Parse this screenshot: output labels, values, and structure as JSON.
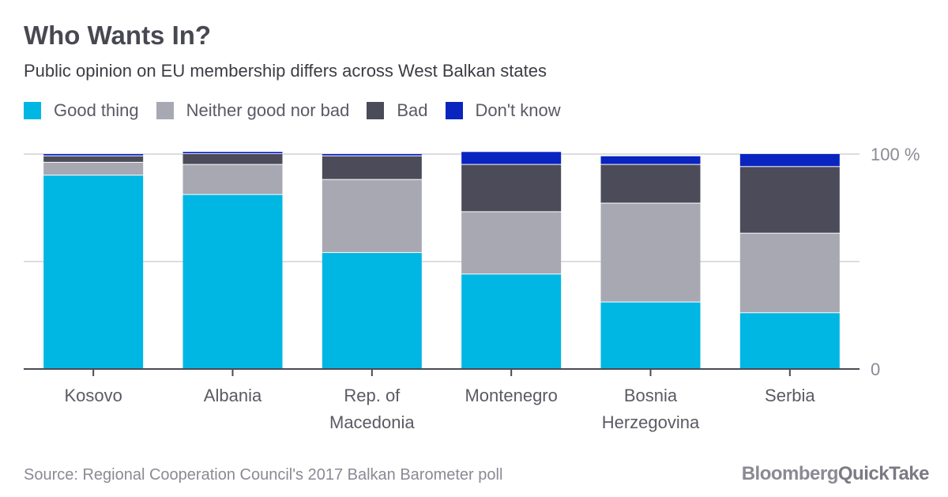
{
  "header": {
    "title": "Who Wants In?",
    "subtitle": "Public opinion on EU membership differs across West Balkan states"
  },
  "legend": [
    {
      "label": "Good thing",
      "color": "#00b6e3"
    },
    {
      "label": "Neither good nor bad",
      "color": "#a8a8b2"
    },
    {
      "label": "Bad",
      "color": "#4c4b5a"
    },
    {
      "label": "Don't know",
      "color": "#0a24c0"
    }
  ],
  "footer": {
    "source": "Source: Regional Cooperation Council's 2017 Balkan Barometer poll",
    "brand_part1": "Bloomberg",
    "brand_part2": "QuickTake"
  },
  "chart_data": {
    "type": "bar",
    "stacked": true,
    "categories": [
      [
        "Kosovo"
      ],
      [
        "Albania"
      ],
      [
        "Rep. of",
        "Macedonia"
      ],
      [
        "Montenegro"
      ],
      [
        "Bosnia",
        "Herzegovina"
      ],
      [
        "Serbia"
      ]
    ],
    "series": [
      {
        "name": "Good thing",
        "color": "#00b6e3",
        "values": [
          90,
          81,
          54,
          44,
          31,
          26
        ]
      },
      {
        "name": "Neither good nor bad",
        "color": "#a8a8b2",
        "values": [
          6,
          14,
          34,
          29,
          46,
          37
        ]
      },
      {
        "name": "Bad",
        "color": "#4c4b5a",
        "values": [
          3,
          5,
          11,
          22,
          18,
          31
        ]
      },
      {
        "name": "Don't know",
        "color": "#0a24c0",
        "values": [
          1,
          1,
          1,
          6,
          4,
          6
        ]
      }
    ],
    "y_ticks": [
      {
        "value": 100,
        "label": "100 %"
      },
      {
        "value": 50,
        "label": ""
      },
      {
        "value": 0,
        "label": "0"
      }
    ],
    "ylim": [
      0,
      100
    ],
    "grid": true,
    "legend_position": "top-left"
  }
}
